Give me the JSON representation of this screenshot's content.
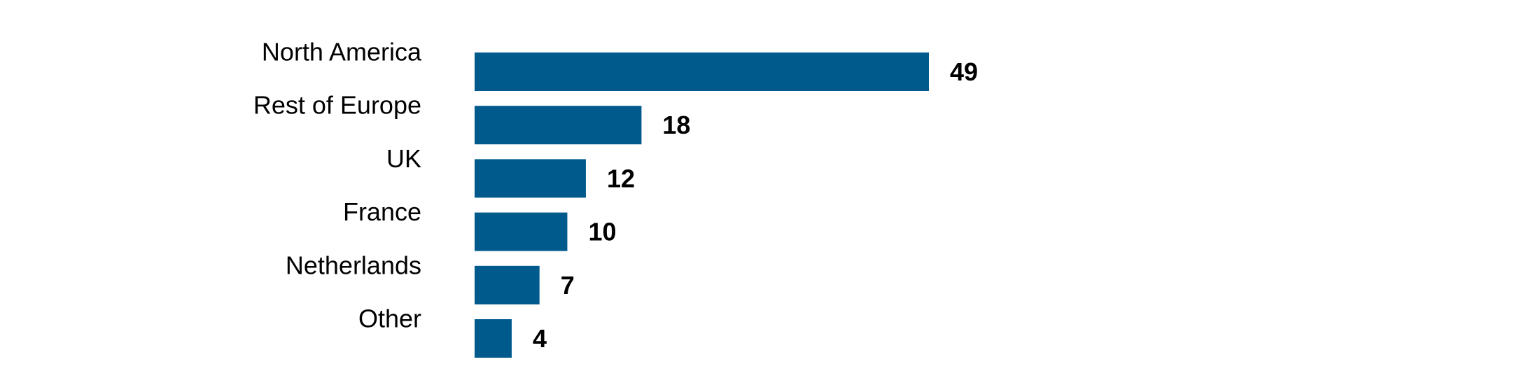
{
  "chart_data": {
    "type": "bar",
    "orientation": "horizontal",
    "categories": [
      "North America",
      "Rest of Europe",
      "UK",
      "France",
      "Netherlands",
      "Other"
    ],
    "values": [
      49,
      18,
      12,
      10,
      7,
      4
    ],
    "color": "#005a8c"
  }
}
